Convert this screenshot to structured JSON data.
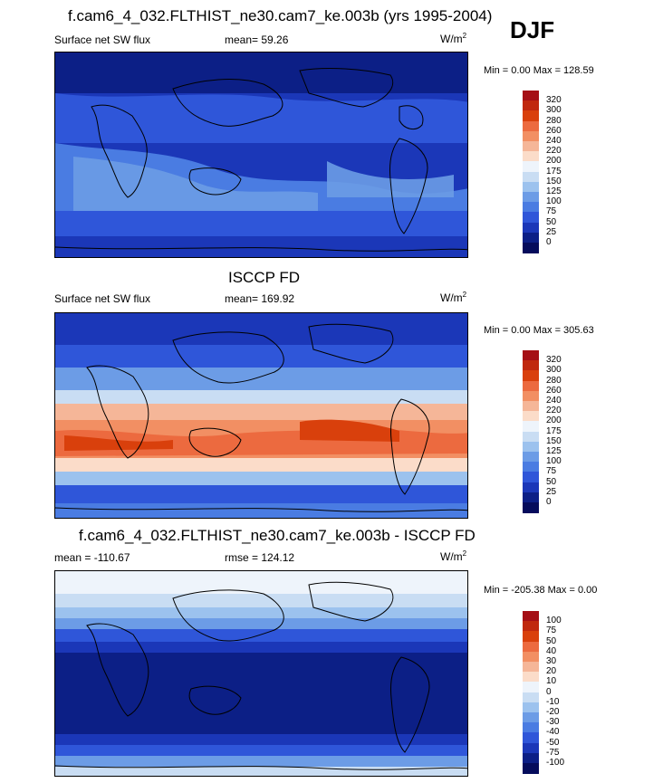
{
  "header": {
    "case_title": "f.cam6_4_032.FLTHIST_ne30.cam7_ke.003b (yrs 1995-2004)",
    "season": "DJF"
  },
  "panels": [
    {
      "id": "model",
      "title": "",
      "left_label": "Surface net SW flux",
      "center_label": "mean=  59.26",
      "units": "W/m",
      "units_sup": "2",
      "minmax": "Min =   0.00 Max = 128.59",
      "colorbar": [
        "320",
        "300",
        "280",
        "260",
        "240",
        "220",
        "200",
        "175",
        "150",
        "125",
        "100",
        "75",
        "50",
        "25",
        "0"
      ]
    },
    {
      "id": "obs",
      "title": "ISCCP FD",
      "left_label": "Surface net SW flux",
      "center_label": "mean= 169.92",
      "units": "W/m",
      "units_sup": "2",
      "minmax": "Min =   0.00 Max = 305.63",
      "colorbar": [
        "320",
        "300",
        "280",
        "260",
        "240",
        "220",
        "200",
        "175",
        "150",
        "125",
        "100",
        "75",
        "50",
        "25",
        "0"
      ]
    },
    {
      "id": "diff",
      "title": "f.cam6_4_032.FLTHIST_ne30.cam7_ke.003b - ISCCP FD",
      "left_label": "mean = -110.67",
      "center_label": "rmse = 124.12",
      "units": "W/m",
      "units_sup": "2",
      "minmax": "Min = -205.38 Max =   0.00",
      "colorbar": [
        "100",
        "75",
        "50",
        "40",
        "30",
        "20",
        "10",
        "0",
        "-10",
        "-20",
        "-30",
        "-40",
        "-50",
        "-75",
        "-100"
      ]
    }
  ],
  "colors": {
    "abs_scale": [
      "#a50f15",
      "#c0280e",
      "#d9400c",
      "#ec6a3f",
      "#f28f63",
      "#f5b698",
      "#fbdcc9",
      "#eef4fb",
      "#c9ddf3",
      "#9cc2ee",
      "#6c9ce6",
      "#4a7ce2",
      "#2f56d9",
      "#1b37b8",
      "#0c1f86",
      "#050c5c"
    ],
    "map_dark": "#0c1f86",
    "map_mid": "#2f56d9",
    "map_light": "#9cc2ee",
    "coast": "#000000"
  }
}
